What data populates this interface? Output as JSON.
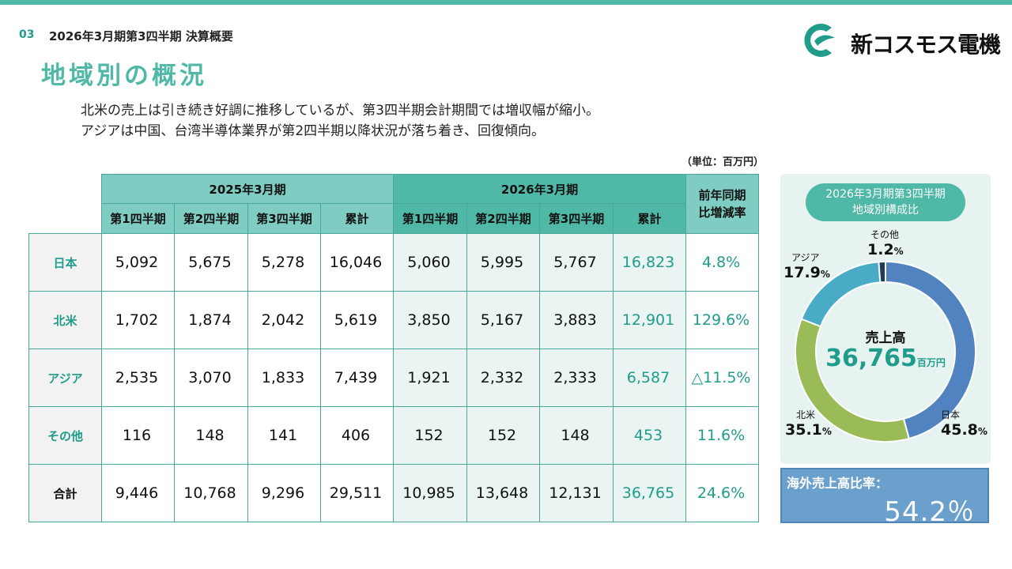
{
  "header": {
    "page_number": "03",
    "section": "2026年3月期第3四半期 決算概要",
    "title": "地域別の概況",
    "company": "新コスモス電機"
  },
  "summary": {
    "line1": "北米の売上は引き続き好調に推移しているが、第3四半期会計期間では増収幅が縮小。",
    "line2": "アジアは中国、台湾半導体業界が第2四半期以降状況が落ち着き、回復傾向。"
  },
  "unit": "（単位：百万円）",
  "table": {
    "year1": "2025年3月期",
    "year2": "2026年3月期",
    "yoy_l1": "前年同期",
    "yoy_l2": "比増減率",
    "cols": [
      "第1四半期",
      "第2四半期",
      "第3四半期",
      "累計"
    ],
    "rows": [
      {
        "region": "日本",
        "fy25": [
          "5,092",
          "5,675",
          "5,278",
          "16,046"
        ],
        "fy26": [
          "5,060",
          "5,995",
          "5,767",
          "16,823"
        ],
        "yoy": "4.8%"
      },
      {
        "region": "北米",
        "fy25": [
          "1,702",
          "1,874",
          "2,042",
          "5,619"
        ],
        "fy26": [
          "3,850",
          "5,167",
          "3,883",
          "12,901"
        ],
        "yoy": "129.6%"
      },
      {
        "region": "アジア",
        "fy25": [
          "2,535",
          "3,070",
          "1,833",
          "7,439"
        ],
        "fy26": [
          "1,921",
          "2,332",
          "2,333",
          "6,587"
        ],
        "yoy": "△11.5%"
      },
      {
        "region": "その他",
        "fy25": [
          "116",
          "148",
          "141",
          "406"
        ],
        "fy26": [
          "152",
          "152",
          "148",
          "453"
        ],
        "yoy": "11.6%"
      },
      {
        "region": "合計",
        "fy25": [
          "9,446",
          "10,768",
          "9,296",
          "29,511"
        ],
        "fy26": [
          "10,985",
          "13,648",
          "12,131",
          "36,765"
        ],
        "yoy": "24.6%"
      }
    ]
  },
  "chart_data": {
    "type": "pie",
    "title": "2026年3月期第3四半期 地域別構成比",
    "title_l1": "2026年3月期第3四半期",
    "title_l2": "地域別構成比",
    "center_label": "売上高",
    "center_value": "36,765",
    "center_unit": "百万円",
    "percent_unit": "%",
    "categories": [
      "日本",
      "北米",
      "アジア",
      "その他"
    ],
    "values": [
      45.8,
      35.1,
      17.9,
      1.2
    ],
    "value_labels": [
      "45.8",
      "35.1",
      "17.9",
      "1.2"
    ],
    "colors": [
      "#5083bf",
      "#9bbb59",
      "#4aabc6",
      "#1f3a5a"
    ]
  },
  "overseas": {
    "label": "海外売上高比率：",
    "value": "54.2％",
    "color": "#6b9fcc"
  }
}
